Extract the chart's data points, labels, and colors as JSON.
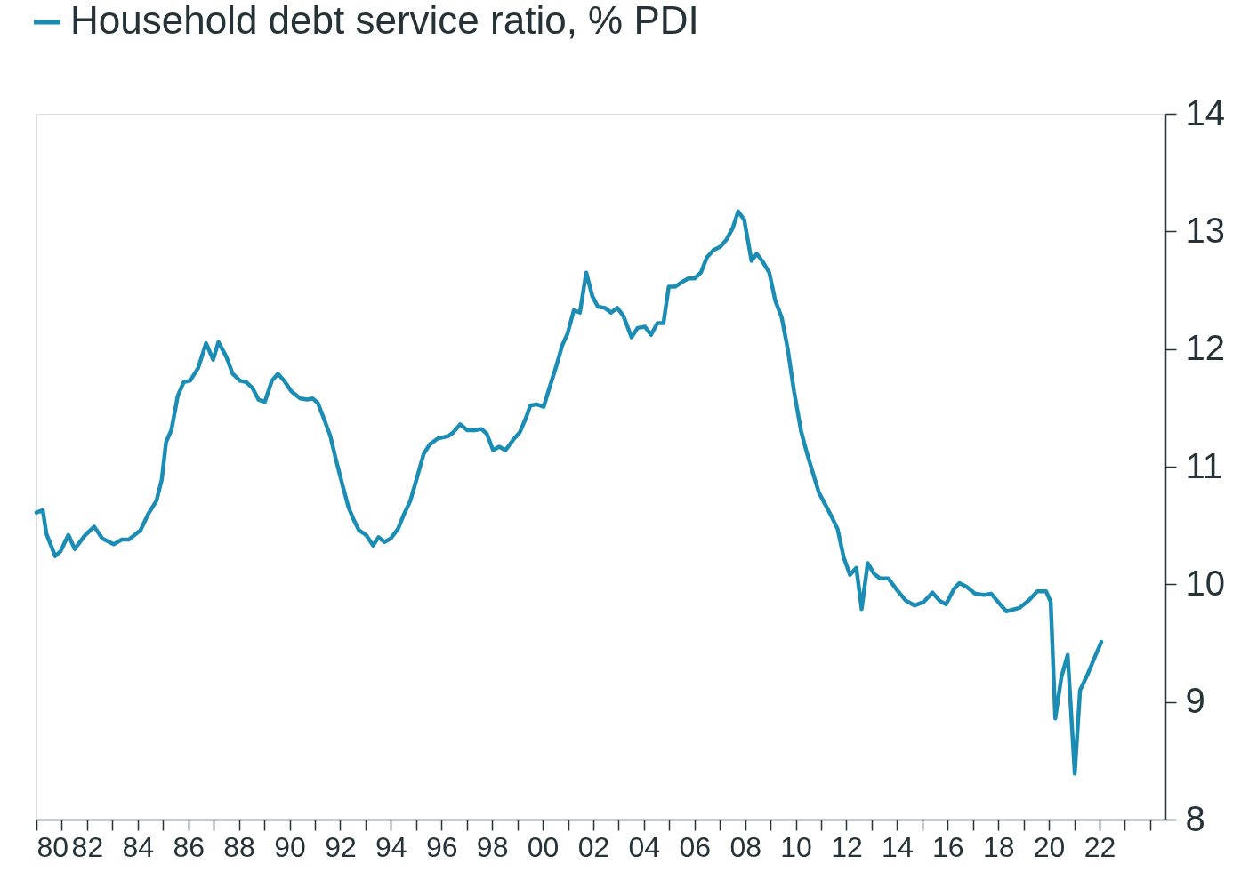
{
  "chart_data": {
    "type": "line",
    "xlim": [
      1980,
      2024.6
    ],
    "xticks": [
      {
        "value": 1980,
        "label": "80"
      },
      {
        "value": 1981,
        "label": null
      },
      {
        "value": 1982,
        "label": "82"
      },
      {
        "value": 1983,
        "label": null
      },
      {
        "value": 1984,
        "label": "84"
      },
      {
        "value": 1985,
        "label": null
      },
      {
        "value": 1986,
        "label": "86"
      },
      {
        "value": 1987,
        "label": null
      },
      {
        "value": 1988,
        "label": "88"
      },
      {
        "value": 1989,
        "label": null
      },
      {
        "value": 1990,
        "label": "90"
      },
      {
        "value": 1991,
        "label": null
      },
      {
        "value": 1992,
        "label": "92"
      },
      {
        "value": 1993,
        "label": null
      },
      {
        "value": 1994,
        "label": "94"
      },
      {
        "value": 1995,
        "label": null
      },
      {
        "value": 1996,
        "label": "96"
      },
      {
        "value": 1997,
        "label": null
      },
      {
        "value": 1998,
        "label": "98"
      },
      {
        "value": 1999,
        "label": null
      },
      {
        "value": 2000,
        "label": "00"
      },
      {
        "value": 2001,
        "label": null
      },
      {
        "value": 2002,
        "label": "02"
      },
      {
        "value": 2003,
        "label": null
      },
      {
        "value": 2004,
        "label": "04"
      },
      {
        "value": 2005,
        "label": null
      },
      {
        "value": 2006,
        "label": "06"
      },
      {
        "value": 2007,
        "label": null
      },
      {
        "value": 2008,
        "label": "08"
      },
      {
        "value": 2009,
        "label": null
      },
      {
        "value": 2010,
        "label": "10"
      },
      {
        "value": 2011,
        "label": null
      },
      {
        "value": 2012,
        "label": "12"
      },
      {
        "value": 2013,
        "label": null
      },
      {
        "value": 2014,
        "label": "14"
      },
      {
        "value": 2015,
        "label": null
      },
      {
        "value": 2016,
        "label": "16"
      },
      {
        "value": 2017,
        "label": null
      },
      {
        "value": 2018,
        "label": "18"
      },
      {
        "value": 2019,
        "label": null
      },
      {
        "value": 2020,
        "label": "20"
      },
      {
        "value": 2021,
        "label": null
      },
      {
        "value": 2022,
        "label": "22"
      },
      {
        "value": 2023,
        "label": null
      },
      {
        "value": 2024,
        "label": null
      }
    ],
    "ylim": [
      8,
      14
    ],
    "yticks": [
      8,
      9,
      10,
      11,
      12,
      13,
      14
    ],
    "grid": false,
    "legend": "top left",
    "series": [
      {
        "name": "Household debt service ratio, % PDI",
        "color": "#1b8db5",
        "x": [
          1980.0,
          1980.25,
          1980.39,
          1980.74,
          1980.95,
          1981.26,
          1981.51,
          1981.89,
          1982.28,
          1982.6,
          1983.05,
          1983.37,
          1983.65,
          1984.11,
          1984.42,
          1984.74,
          1984.95,
          1985.12,
          1985.33,
          1985.58,
          1985.82,
          1986.07,
          1986.39,
          1986.7,
          1986.98,
          1987.19,
          1987.51,
          1987.75,
          1988.04,
          1988.28,
          1988.53,
          1988.77,
          1989.02,
          1989.3,
          1989.54,
          1989.79,
          1990.07,
          1990.42,
          1990.7,
          1990.91,
          1991.12,
          1991.37,
          1991.61,
          1991.82,
          1992.07,
          1992.32,
          1992.53,
          1992.74,
          1993.02,
          1993.3,
          1993.51,
          1993.75,
          1994.0,
          1994.28,
          1994.53,
          1994.77,
          1995.05,
          1995.3,
          1995.54,
          1995.86,
          1996.28,
          1996.46,
          1996.74,
          1997.02,
          1997.33,
          1997.58,
          1997.79,
          1998.04,
          1998.28,
          1998.53,
          1998.84,
          1999.09,
          1999.33,
          1999.51,
          1999.75,
          2000.04,
          2000.28,
          2000.53,
          2000.77,
          2000.98,
          2001.23,
          2001.47,
          2001.72,
          2001.96,
          2002.18,
          2002.46,
          2002.7,
          2002.95,
          2003.19,
          2003.51,
          2003.75,
          2004.04,
          2004.28,
          2004.53,
          2004.77,
          2004.98,
          2005.23,
          2005.51,
          2005.75,
          2006.0,
          2006.25,
          2006.49,
          2006.74,
          2007.02,
          2007.26,
          2007.51,
          2007.72,
          2007.96,
          2008.25,
          2008.46,
          2008.7,
          2008.95,
          2009.19,
          2009.44,
          2009.68,
          2009.93,
          2010.21,
          2010.42,
          2010.67,
          2010.91,
          2011.16,
          2011.4,
          2011.65,
          2011.89,
          2012.14,
          2012.39,
          2012.6,
          2012.84,
          2013.09,
          2013.33,
          2013.65,
          2014.04,
          2014.35,
          2014.7,
          2015.05,
          2015.4,
          2015.68,
          2015.93,
          2016.25,
          2016.46,
          2016.74,
          2017.09,
          2017.44,
          2017.72,
          2018.07,
          2018.32,
          2018.84,
          2019.19,
          2019.54,
          2019.89,
          2020.07,
          2020.25,
          2020.49,
          2020.74,
          2021.02,
          2021.23,
          2021.54,
          2021.79,
          2022.07
        ],
        "values": [
          10.61,
          10.63,
          10.43,
          10.24,
          10.28,
          10.42,
          10.3,
          10.41,
          10.49,
          10.39,
          10.34,
          10.38,
          10.38,
          10.46,
          10.6,
          10.71,
          10.89,
          11.21,
          11.31,
          11.6,
          11.72,
          11.73,
          11.84,
          12.05,
          11.91,
          12.06,
          11.93,
          11.79,
          11.73,
          11.72,
          11.67,
          11.57,
          11.55,
          11.73,
          11.79,
          11.73,
          11.64,
          11.58,
          11.57,
          11.58,
          11.54,
          11.4,
          11.26,
          11.07,
          10.86,
          10.66,
          10.55,
          10.46,
          10.42,
          10.33,
          10.4,
          10.36,
          10.39,
          10.47,
          10.6,
          10.71,
          10.92,
          11.11,
          11.19,
          11.24,
          11.26,
          11.29,
          11.36,
          11.31,
          11.31,
          11.32,
          11.28,
          11.14,
          11.17,
          11.14,
          11.23,
          11.29,
          11.41,
          11.52,
          11.53,
          11.51,
          11.68,
          11.85,
          12.03,
          12.13,
          12.33,
          12.31,
          12.65,
          12.45,
          12.36,
          12.35,
          12.31,
          12.35,
          12.28,
          12.1,
          12.18,
          12.19,
          12.12,
          12.22,
          12.22,
          12.53,
          12.53,
          12.57,
          12.6,
          12.6,
          12.65,
          12.78,
          12.84,
          12.87,
          12.93,
          13.03,
          13.17,
          13.1,
          12.75,
          12.81,
          12.74,
          12.65,
          12.41,
          12.27,
          12.0,
          11.64,
          11.3,
          11.13,
          10.95,
          10.78,
          10.68,
          10.58,
          10.47,
          10.23,
          10.08,
          10.14,
          9.79,
          10.18,
          10.09,
          10.05,
          10.05,
          9.94,
          9.86,
          9.82,
          9.85,
          9.93,
          9.86,
          9.83,
          9.96,
          10.01,
          9.98,
          9.92,
          9.91,
          9.92,
          9.83,
          9.77,
          9.8,
          9.86,
          9.94,
          9.94,
          9.85,
          8.86,
          9.21,
          9.4,
          8.39,
          9.1,
          9.24,
          9.37,
          9.51
        ]
      }
    ]
  }
}
